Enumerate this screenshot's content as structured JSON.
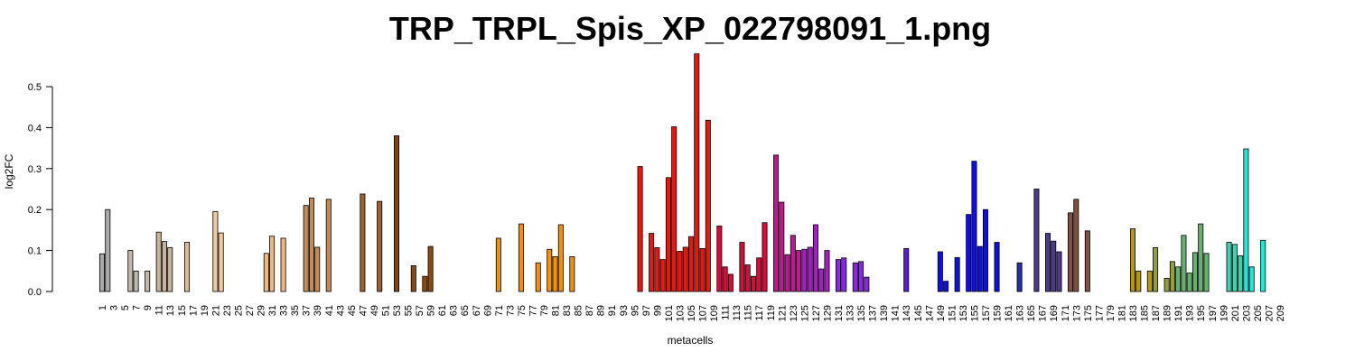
{
  "chart_data": {
    "type": "bar",
    "title": "TRP_TRPL_Spis_XP_022798091_1.png",
    "xlabel": "metacells",
    "ylabel": "log2FC",
    "categories": [
      "1",
      null,
      "3",
      null,
      "5",
      null,
      "7",
      null,
      "9",
      null,
      "11",
      null,
      "13",
      null,
      "15",
      null,
      "17",
      null,
      "19",
      null,
      "21",
      null,
      "23",
      null,
      "25",
      null,
      "27",
      null,
      "29",
      null,
      "31",
      null,
      "33",
      null,
      "35",
      null,
      "37",
      null,
      "39",
      null,
      "41",
      null,
      "43",
      null,
      "45",
      null,
      "47",
      null,
      "49",
      null,
      "51",
      null,
      "53",
      null,
      "55",
      null,
      "57",
      null,
      "59",
      null,
      "61",
      null,
      "63",
      null,
      "65",
      null,
      "67",
      null,
      "69",
      null,
      "71",
      null,
      "73",
      null,
      "75",
      null,
      "77",
      null,
      "79",
      null,
      "81",
      null,
      "83",
      null,
      "85",
      null,
      "87",
      null,
      "89",
      null,
      "91",
      null,
      "93",
      null,
      "95",
      null,
      "97",
      null,
      "99",
      null,
      "101",
      null,
      "103",
      null,
      "105",
      null,
      "107",
      null,
      "109",
      null,
      "111",
      null,
      "113",
      null,
      "115",
      null,
      "117",
      null,
      "119",
      null,
      "121",
      null,
      "123",
      null,
      "125",
      null,
      "127",
      null,
      "129",
      null,
      "131",
      null,
      "133",
      null,
      "135",
      null,
      "137",
      null,
      "139",
      null,
      "141",
      null,
      "143",
      null,
      "145",
      null,
      "147",
      null,
      "149",
      null,
      "151",
      null,
      "153",
      null,
      "155",
      null,
      "157",
      null,
      "159",
      null,
      "161",
      null,
      "163",
      null,
      "165",
      null,
      "167",
      null,
      "169",
      null,
      "171",
      null,
      "173",
      null,
      "175",
      null,
      "177",
      null,
      "179",
      null,
      "181",
      null,
      "183",
      null,
      "185",
      null,
      "187",
      null,
      "189",
      null,
      "191",
      null,
      "193",
      null,
      "195",
      null,
      "197",
      null,
      "199",
      null,
      "201",
      null,
      "203",
      null,
      "205",
      null,
      "207",
      null,
      "209"
    ],
    "values": [
      0.092,
      0.2,
      0,
      0,
      0,
      0.1,
      0.05,
      0,
      0.05,
      0,
      0.145,
      0.122,
      0.107,
      0,
      0,
      0.12,
      0,
      0,
      0,
      0,
      0.195,
      0.143,
      0,
      0,
      0,
      0,
      0,
      0,
      0,
      0.093,
      0.135,
      0,
      0.13,
      0,
      0,
      0,
      0.21,
      0.228,
      0.108,
      0,
      0.225,
      0,
      0,
      0,
      0,
      0,
      0.238,
      0,
      0,
      0.22,
      0,
      0,
      0.38,
      0,
      0,
      0.063,
      0,
      0.037,
      0.11,
      0,
      0,
      0,
      0,
      0,
      0,
      0,
      0,
      0,
      0,
      0,
      0.13,
      0,
      0,
      0,
      0.165,
      0,
      0,
      0.07,
      0,
      0.103,
      0.085,
      0.163,
      0,
      0.085,
      0,
      0,
      0,
      0,
      0,
      0,
      0,
      0,
      0,
      0,
      0,
      0.305,
      0,
      0.142,
      0.107,
      0.078,
      0.278,
      0.402,
      0.098,
      0.108,
      0.134,
      0.58,
      0.105,
      0.418,
      0,
      0.16,
      0.06,
      0.042,
      0,
      0.12,
      0.065,
      0.037,
      0.082,
      0.168,
      0,
      0.333,
      0.218,
      0.09,
      0.137,
      0.1,
      0.103,
      0.108,
      0.163,
      0.055,
      0.1,
      0,
      0.078,
      0.082,
      0,
      0.07,
      0.073,
      0.035,
      0,
      0,
      0,
      0,
      0,
      0,
      0.105,
      0,
      0,
      0,
      0,
      0,
      0.097,
      0.025,
      0,
      0.083,
      0,
      0.188,
      0.318,
      0.11,
      0.2,
      0,
      0.12,
      0,
      0,
      0,
      0.07,
      0,
      0,
      0.25,
      0,
      0.142,
      0.123,
      0.097,
      0,
      0.192,
      0.225,
      0,
      0.148,
      0,
      0,
      0,
      0,
      0,
      0,
      0,
      0.153,
      0.05,
      0,
      0.05,
      0.107,
      0,
      0.032,
      0.073,
      0.06,
      0.137,
      0.045,
      0.095,
      0.165,
      0.093,
      0,
      0,
      0,
      0.12,
      0.115,
      0.087,
      0.348,
      0.06,
      0,
      0.125,
      0,
      0,
      0
    ],
    "colors": [
      "#aaaaaa",
      "#aaaaaa",
      "#aaaaaa",
      "#aaaaaa",
      "#c2b8aa",
      "#c2b8aa",
      "#c2b8aa",
      "#c2b8aa",
      "#c2b8aa",
      "#c8b49c",
      "#c8b49c",
      "#c8b49c",
      "#c8b49c",
      "#c8b49c",
      "#d8bc98",
      "#d8bc98",
      "#d8bc98",
      "#d8bc98",
      "#d8bc98",
      "#f0cca0",
      "#f0cca0",
      "#f0cca0",
      "#f0cca0",
      "#f0cca0",
      "#f0cca0",
      "#e8b886",
      "#e8b886",
      "#e8b886",
      "#e8b886",
      "#e8b886",
      "#e8b886",
      "#e8b886",
      "#e8b886",
      "#e8b886",
      "#e8b886",
      "#c48b58",
      "#c48b58",
      "#c48b58",
      "#c48b58",
      "#c48b58",
      "#c48b58",
      "#9a6234",
      "#9a6234",
      "#9a6234",
      "#9a6234",
      "#9a6234",
      "#9a6234",
      "#9a6234",
      "#9a6234",
      "#9a6234",
      "#7a4519",
      "#7a4519",
      "#7a4519",
      "#7a4519",
      "#7a4519",
      "#8b4a12",
      "#8b4a12",
      "#8b4a12",
      "#8b4a12",
      "#8b4a12",
      "#d08020",
      "#d08020",
      "#d08020",
      "#d08020",
      "#d08020",
      "#d08020",
      "#d08020",
      "#d08020",
      "#d08020",
      "#f09010",
      "#f09010",
      "#f09010",
      "#f09010",
      "#f09010",
      "#f09010",
      "#f09010",
      "#f09010",
      "#f09010",
      "#f09010",
      "#f09010",
      "#f09010",
      "#f09010",
      "#f09010",
      "#f09010",
      "#f09010",
      "#f06010",
      "#f06010",
      "#f06010",
      "#f06010",
      "#f06010",
      "#f06010",
      "#f06010",
      "#f06010",
      "#f06010",
      "#f06010",
      "#e81810",
      "#e81810",
      "#e81810",
      "#e81810",
      "#e81810",
      "#e81810",
      "#e81810",
      "#e81810",
      "#e81810",
      "#e81810",
      "#e81810",
      "#e81810",
      "#e81810",
      "#d01038",
      "#d01038",
      "#d01038",
      "#d01038",
      "#d01038",
      "#d01038",
      "#d01038",
      "#d01038",
      "#d01038",
      "#d01038",
      "#c01890",
      "#c01890",
      "#c01890",
      "#c01890",
      "#c01890",
      "#c01890",
      "#a020c0",
      "#a020c0",
      "#a020c0",
      "#a020c0",
      "#a020c0",
      "#8a28e0",
      "#8a28e0",
      "#8a28e0",
      "#8a28e0",
      "#8a28e0",
      "#8a28e0",
      "#8a28e0",
      "#8a28e0",
      "#5a18e0",
      "#5a18e0",
      "#5a18e0",
      "#5a18e0",
      "#5a18e0",
      "#5a18e0",
      "#5a18e0",
      "#5a18e0",
      "#5a18e0",
      "#0c10e0",
      "#0c10e0",
      "#0c10e0",
      "#0c10e0",
      "#0c10e0",
      "#0c10e0",
      "#0c10e0",
      "#0c10e0",
      "#0c10e0",
      "#0c10e0",
      "#0c10e0",
      "#0c10e0",
      "#0c10e0",
      "#2830a0",
      "#2830a0",
      "#2830a0",
      "#2830a0",
      "#2830a0",
      "#4a3a88",
      "#4a3a88",
      "#4a3a88",
      "#4a3a88",
      "#4a3a88",
      "#4a3a88",
      "#805040",
      "#805040",
      "#805040",
      "#805040",
      "#805040",
      "#805040",
      "#b8961c",
      "#b8961c",
      "#b8961c",
      "#b8961c",
      "#b8961c",
      "#b8961c",
      "#b8961c",
      "#b8961c",
      "#b8961c",
      "#b8961c",
      "#90a040",
      "#90a040",
      "#90a040",
      "#90a040",
      "#68b070",
      "#68b070",
      "#68b070",
      "#68b070",
      "#68b070",
      "#68b070",
      "#40d0b0",
      "#40d0b0",
      "#40d0b0",
      "#40d0b0",
      "#40d0b0",
      "#40d0b0",
      "#20e8d8",
      "#20e8d8",
      "#20e8d8",
      "#20e8d8",
      "#20e8d8",
      "#20e8d8",
      "#20e8d8"
    ],
    "ylim": [
      0,
      0.58
    ],
    "yticks": [
      {
        "value": 0,
        "label": "0.0"
      },
      {
        "value": 0.1,
        "label": "0.1"
      },
      {
        "value": 0.2,
        "label": "0.2"
      },
      {
        "value": 0.3,
        "label": "0.3"
      },
      {
        "value": 0.4,
        "label": "0.4"
      },
      {
        "value": 0.5,
        "label": "0.5"
      }
    ],
    "grid": false
  }
}
